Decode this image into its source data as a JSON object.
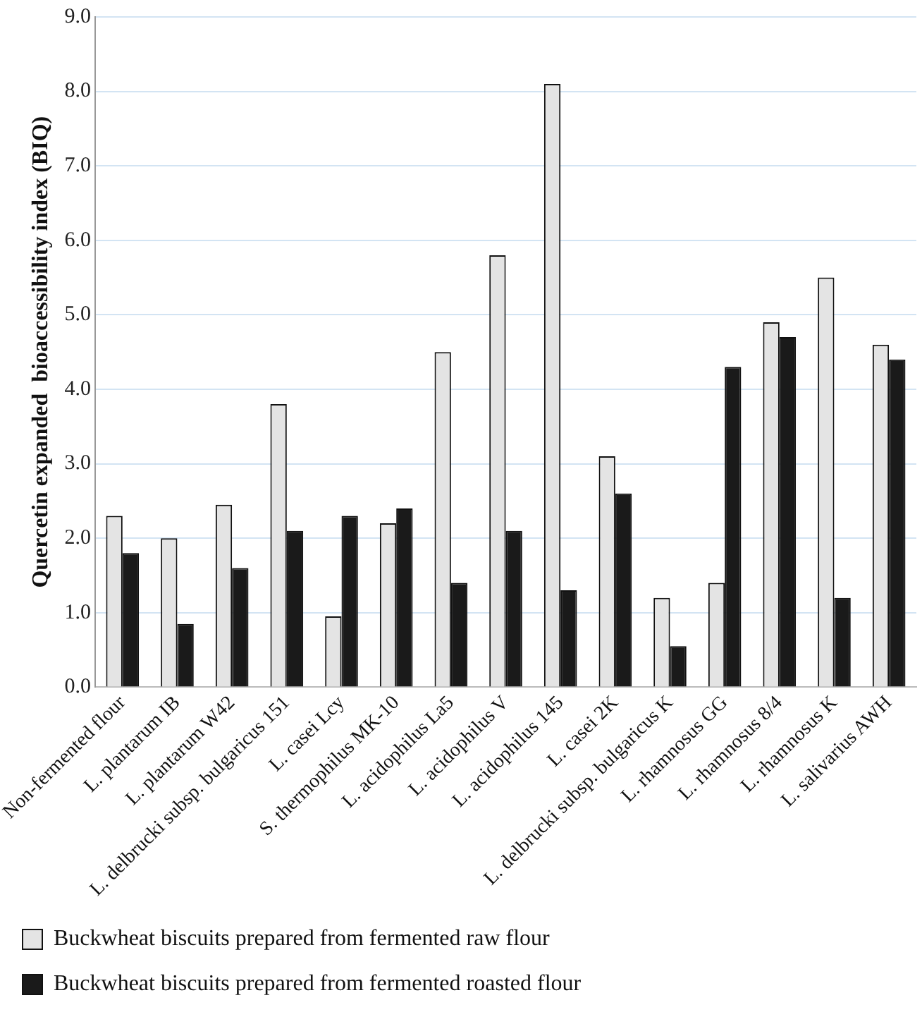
{
  "chart_data": {
    "type": "bar",
    "ylabel": "Quercetin expanded  bioaccessibility index (BIQ)",
    "categories": [
      "Non-fermented flour",
      "L. plantarum IB",
      "L. plantarum W42",
      "L. delbrucki subsp. bulgaricus 151",
      "L. casei Lcy",
      "S. thermophilus MK-10",
      "L. acidophilus La5",
      "L. acidophilus V",
      "L. acidophilus 145",
      "L. casei 2K",
      "L. delbrucki subsp. bulgaricus K",
      "L. rhamnosus GG",
      "L. rhamnosus 8/4",
      "L. rhamnosus K",
      "L. salivarius AWH"
    ],
    "series": [
      {
        "name": "Buckwheat biscuits prepared from fermented raw flour",
        "color": "#e4e4e4",
        "values": [
          2.3,
          2.0,
          2.45,
          3.8,
          0.95,
          2.2,
          4.5,
          5.8,
          8.1,
          3.1,
          1.2,
          1.4,
          4.9,
          5.5,
          4.6
        ]
      },
      {
        "name": "Buckwheat biscuits prepared from fermented roasted flour",
        "color": "#1a1a1a",
        "values": [
          1.8,
          0.85,
          1.6,
          2.1,
          2.3,
          2.4,
          1.4,
          2.1,
          1.3,
          2.6,
          0.55,
          4.3,
          4.7,
          1.2,
          4.4
        ]
      }
    ],
    "ylim": [
      0,
      9
    ],
    "yticks": [
      {
        "value": 0,
        "label": "0.0"
      },
      {
        "value": 1,
        "label": "1.0"
      },
      {
        "value": 2,
        "label": "2.0"
      },
      {
        "value": 3,
        "label": "3.0"
      },
      {
        "value": 4,
        "label": "4.0"
      },
      {
        "value": 5,
        "label": "5.0"
      },
      {
        "value": 6,
        "label": "6.0"
      },
      {
        "value": 7,
        "label": "7.0"
      },
      {
        "value": 8,
        "label": "8.0"
      },
      {
        "value": 9,
        "label": "9.0"
      }
    ],
    "grid": "y",
    "legend": "bottom"
  }
}
